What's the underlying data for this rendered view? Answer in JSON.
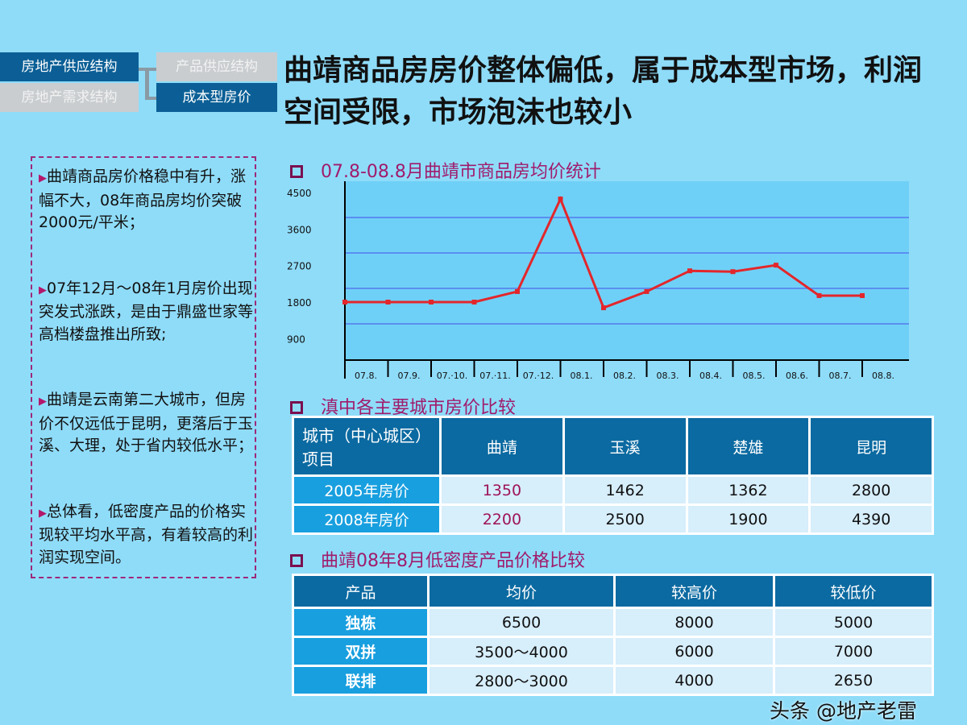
{
  "nav": {
    "supply_structure": "房地产供应结构",
    "demand_structure": "房地产需求结构",
    "product_supply": "产品供应结构",
    "cost_price": "成本型房价"
  },
  "title": "曲靖商品房房价整体偏低，属于成本型市场，利润空间受限，市场泡沫也较小",
  "notes": [
    "曲靖商品房价格稳中有升，涨幅不大，08年商品房均价突破2000元/平米；",
    "07年12月～08年1月房价出现突发式涨跌，是由于鼎盛世家等高档楼盘推出所致;",
    "曲靖是云南第二大城市，但房价不仅远低于昆明，更落后于玉溪、大理，处于省内较低水平；",
    "总体看，低密度产品的价格实现较平均水平高，有着较高的利润实现空间。"
  ],
  "bullet_icon": "triangle-right",
  "sections": {
    "chart": "07.8-08.8月曲靖市商品房均价统计",
    "city_compare": "滇中各主要城市房价比较",
    "low_density": "曲靖08年8月低密度产品价格比较"
  },
  "chart_data": {
    "type": "line",
    "title": "07.8-08.8月曲靖市商品房均价统计",
    "categories": [
      "07.8.",
      "07.9.",
      "07.·10.",
      "07.·11.",
      "07.·12.",
      "08.1.",
      "08.2.",
      "08.3.",
      "08.4.",
      "08.5.",
      "08.6.",
      "08.7.",
      "08.8."
    ],
    "values": [
      1800,
      1800,
      1800,
      1800,
      2060,
      4340,
      1660,
      2060,
      2570,
      2550,
      2710,
      1960,
      1960
    ],
    "y_ticks": [
      4500,
      3600,
      2700,
      1800,
      900
    ],
    "ylim": [
      900,
      4500
    ],
    "grid": true,
    "line_color": "#e3262b",
    "plot_bg": "#6fd0f7"
  },
  "city_table": {
    "headers": [
      "城市（中心城区）项目",
      "曲靖",
      "玉溪",
      "楚雄",
      "昆明"
    ],
    "rows": [
      {
        "label": "2005年房价",
        "values": [
          "1350",
          "1462",
          "1362",
          "2800"
        ]
      },
      {
        "label": "2008年房价",
        "values": [
          "2200",
          "2500",
          "1900",
          "4390"
        ]
      }
    ]
  },
  "product_table": {
    "headers": [
      "产品",
      "均价",
      "较高价",
      "较低价"
    ],
    "rows": [
      {
        "label": "独栋",
        "values": [
          "6500",
          "8000",
          "5000"
        ]
      },
      {
        "label": "双拼",
        "values": [
          "3500～4000",
          "6000",
          "7000"
        ]
      },
      {
        "label": "联排",
        "values": [
          "2800～3000",
          "4000",
          "2650"
        ]
      }
    ]
  },
  "watermark": "头条 @地产老雷"
}
